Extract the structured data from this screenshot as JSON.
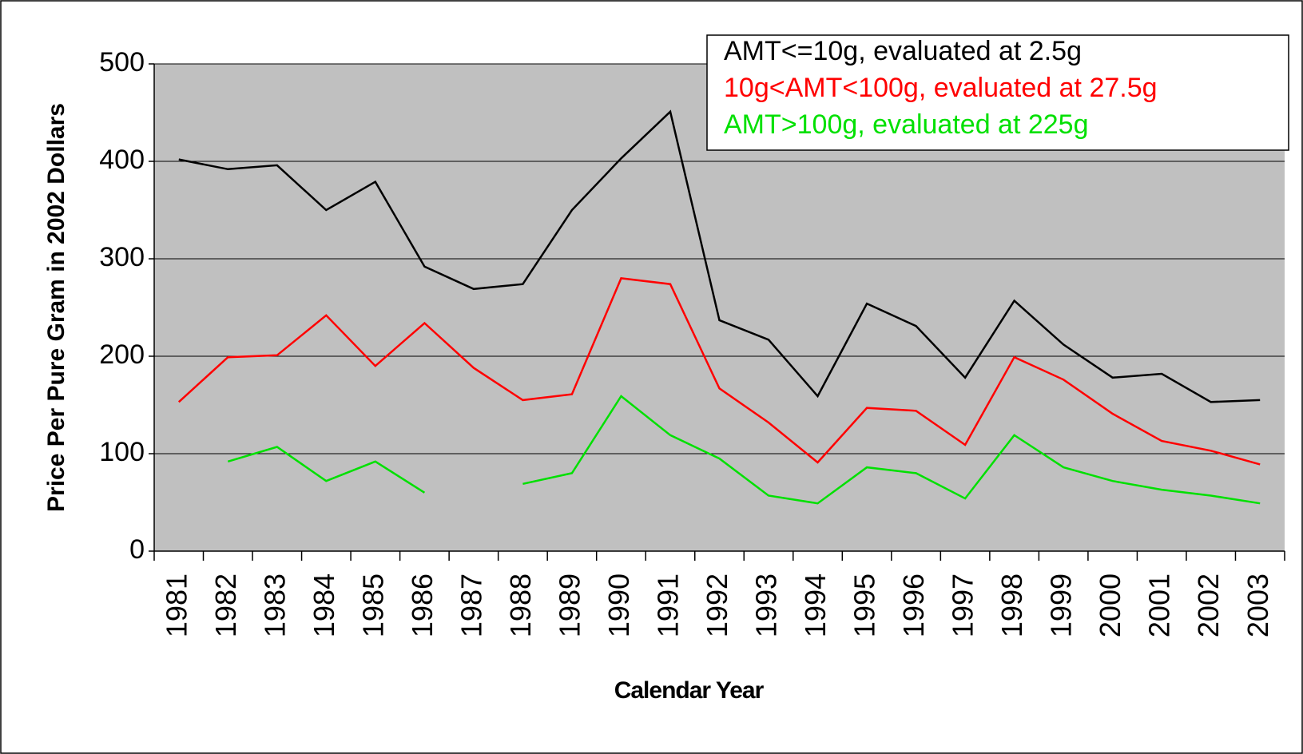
{
  "chart_data": {
    "type": "line",
    "x_label": "Calendar Year",
    "y_label": "Price Per Pure Gram in 2002 Dollars",
    "categories": [
      "1981",
      "1982",
      "1983",
      "1984",
      "1985",
      "1986",
      "1987",
      "1988",
      "1989",
      "1990",
      "1991",
      "1992",
      "1993",
      "1994",
      "1995",
      "1996",
      "1997",
      "1998",
      "1999",
      "2000",
      "2001",
      "2002",
      "2003"
    ],
    "series": [
      {
        "name": "AMT<=10g, evaluated at 2.5g",
        "color": "#000000",
        "values": [
          402,
          392,
          396,
          350,
          379,
          292,
          269,
          274,
          350,
          403,
          451,
          237,
          217,
          159,
          254,
          231,
          178,
          257,
          212,
          178,
          182,
          153,
          155
        ]
      },
      {
        "name": "10g<AMT<100g, evaluated at 27.5g",
        "color": "#ff0000",
        "values": [
          153,
          199,
          201,
          242,
          190,
          234,
          188,
          155,
          161,
          280,
          274,
          167,
          132,
          91,
          147,
          144,
          109,
          199,
          176,
          141,
          113,
          103,
          89
        ]
      },
      {
        "name": "AMT>100g, evaluated at 225g",
        "color": "#00e000",
        "values": [
          null,
          92,
          107,
          72,
          92,
          60,
          null,
          69,
          80,
          159,
          119,
          95,
          57,
          49,
          86,
          80,
          54,
          119,
          86,
          72,
          63,
          57,
          49
        ]
      }
    ],
    "ylim": [
      0,
      500
    ],
    "yticks": [
      0,
      100,
      200,
      300,
      400,
      500
    ],
    "grid": true,
    "legend": "upper right",
    "plot_background": "#c0c0c0"
  }
}
